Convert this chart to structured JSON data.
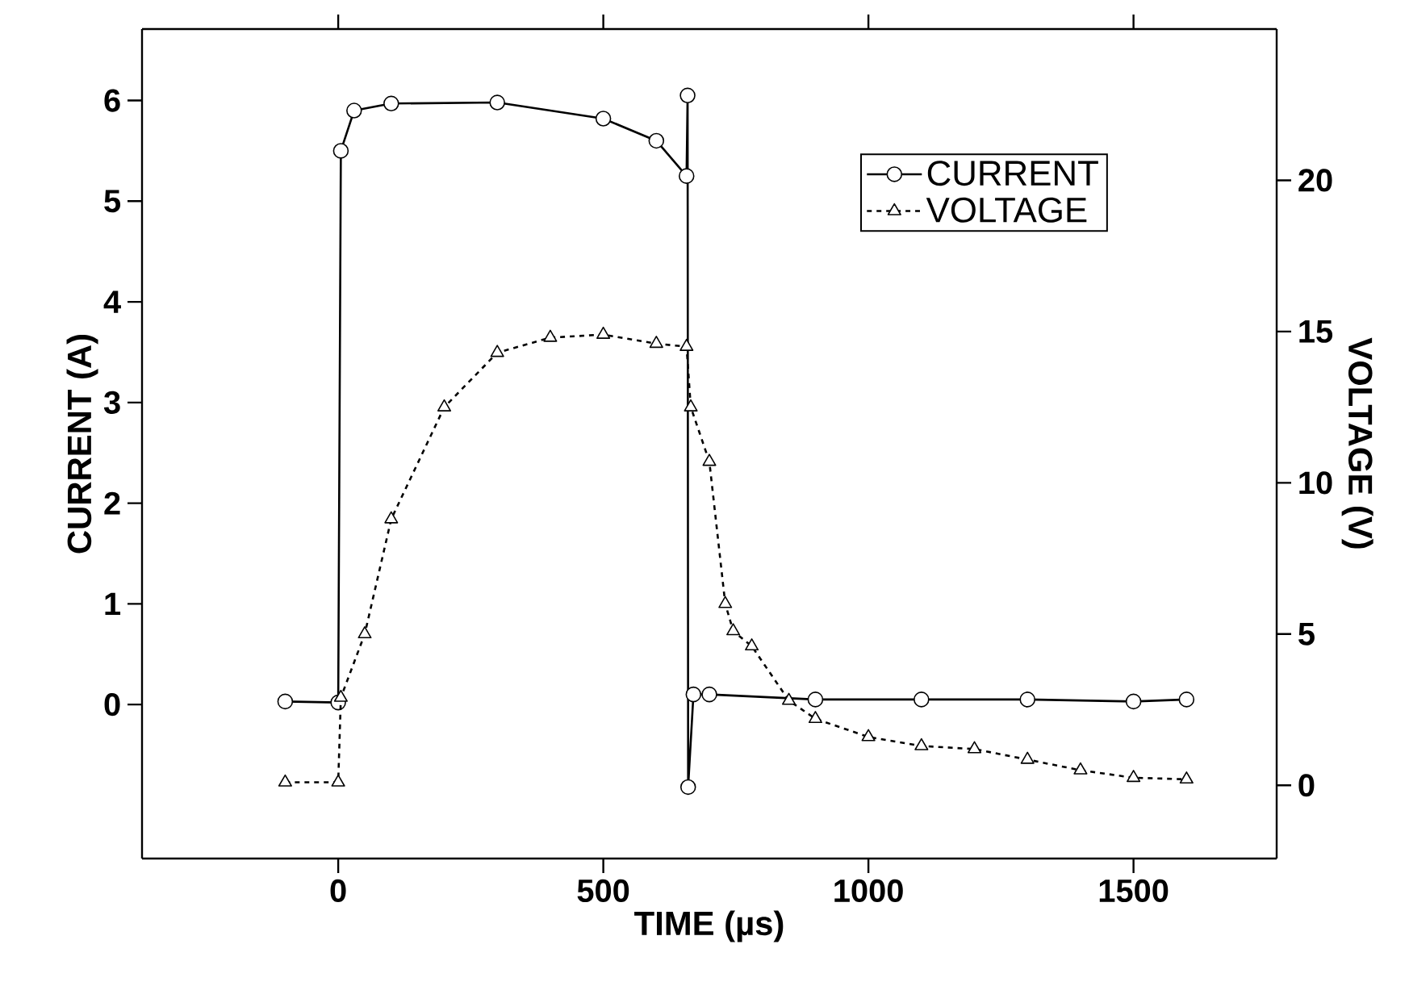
{
  "chart_data": {
    "type": "line",
    "xlabel": "TIME (µs)",
    "ylabel": "CURRENT (A)",
    "y2label": "VOLTAGE (V)",
    "xlim": [
      -370,
      1770
    ],
    "xticks": [
      0,
      500,
      1000,
      1500
    ],
    "ylim": [
      -1.53,
      6.71
    ],
    "yticks": [
      0,
      1,
      2,
      3,
      4,
      5,
      6
    ],
    "y2lim": [
      -2.42,
      25.0
    ],
    "y2ticks": [
      0,
      5,
      10,
      15,
      20
    ],
    "legend": "top right",
    "series": [
      {
        "name": "CURRENT",
        "color": "#000000",
        "marker": "circle",
        "line_style": "solid",
        "x": [
          -100,
          0,
          5,
          30,
          100,
          300,
          500,
          600,
          657,
          659,
          660,
          670,
          700,
          900,
          1100,
          1300,
          1500,
          1600
        ],
        "values": [
          0.03,
          0.02,
          5.5,
          5.9,
          5.97,
          5.98,
          5.82,
          5.6,
          5.25,
          6.05,
          -0.82,
          0.1,
          0.1,
          0.05,
          0.05,
          0.05,
          0.03,
          0.05
        ]
      },
      {
        "name": "VOLTAGE",
        "color": "#000000",
        "marker": "triangle",
        "line_style": "dashed",
        "axis": "y2",
        "x": [
          -100,
          0,
          5,
          50,
          100,
          200,
          300,
          400,
          500,
          600,
          657,
          665,
          700,
          730,
          745,
          780,
          850,
          900,
          1000,
          1100,
          1200,
          1300,
          1400,
          1500,
          1600
        ],
        "values": [
          0.1,
          0.1,
          2.9,
          5.0,
          8.8,
          12.5,
          14.3,
          14.8,
          14.9,
          14.6,
          14.5,
          12.5,
          10.7,
          6.0,
          5.1,
          4.6,
          2.8,
          2.2,
          1.6,
          1.3,
          1.2,
          0.85,
          0.5,
          0.25,
          0.2
        ]
      }
    ]
  }
}
